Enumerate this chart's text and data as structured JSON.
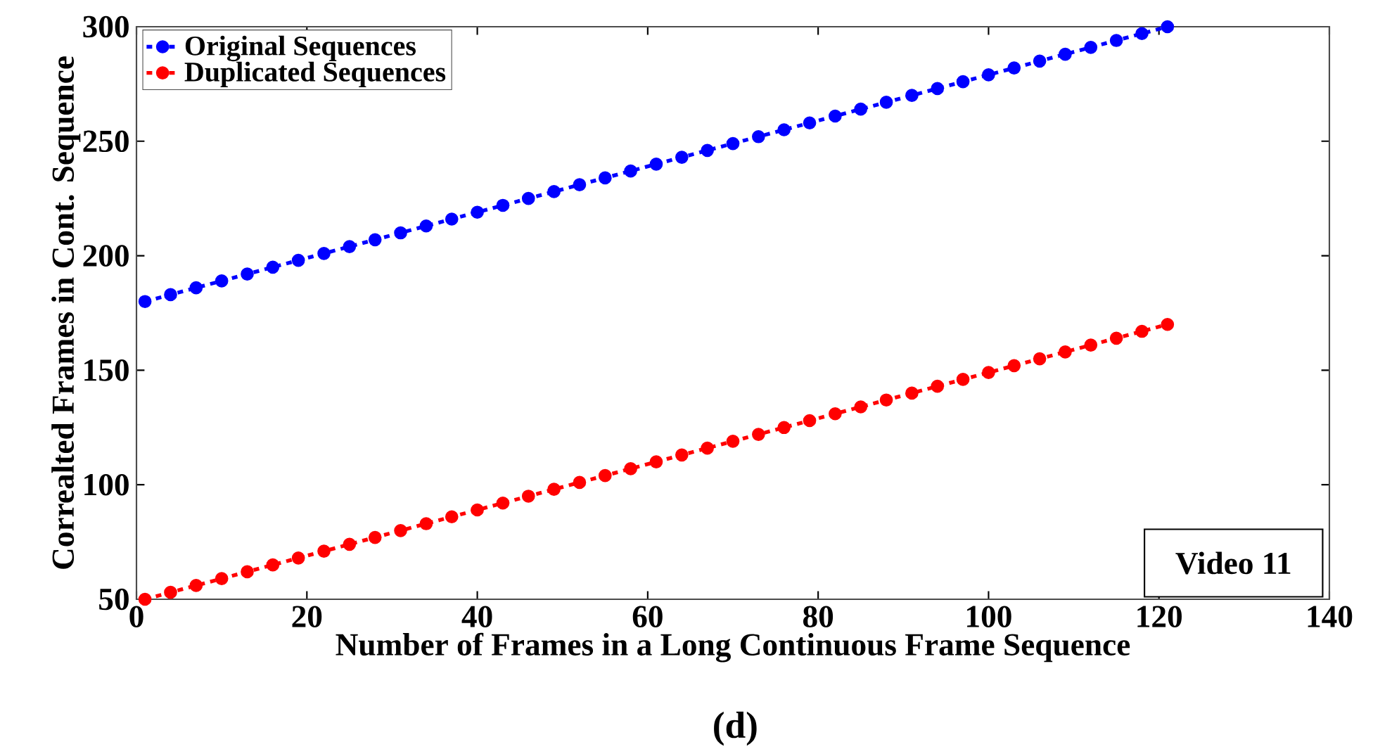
{
  "chart_data": {
    "type": "line",
    "xlabel": "Number of Frames in a Long Continuous Frame Sequence",
    "ylabel": "Correalted Frames in Cont. Sequence",
    "x": [
      1,
      4,
      7,
      10,
      13,
      16,
      19,
      22,
      25,
      28,
      31,
      34,
      37,
      40,
      43,
      46,
      49,
      52,
      55,
      58,
      61,
      64,
      67,
      70,
      73,
      76,
      79,
      82,
      85,
      88,
      91,
      94,
      97,
      100,
      103,
      106,
      109,
      112,
      115,
      118,
      121
    ],
    "series": [
      {
        "name": "Original Sequences",
        "color": "#0000ff",
        "values": [
          180,
          183,
          186,
          189,
          192,
          195,
          198,
          201,
          204,
          207,
          210,
          213,
          216,
          219,
          222,
          225,
          228,
          231,
          234,
          237,
          240,
          243,
          246,
          249,
          252,
          255,
          258,
          261,
          264,
          267,
          270,
          273,
          276,
          279,
          282,
          285,
          288,
          291,
          294,
          297,
          300
        ]
      },
      {
        "name": "Duplicated Sequences",
        "color": "#ff0000",
        "values": [
          50,
          53,
          56,
          59,
          62,
          65,
          68,
          71,
          74,
          77,
          80,
          83,
          86,
          89,
          92,
          95,
          98,
          101,
          104,
          107,
          110,
          113,
          116,
          119,
          122,
          125,
          128,
          131,
          134,
          137,
          140,
          143,
          146,
          149,
          152,
          155,
          158,
          161,
          164,
          167,
          170
        ]
      }
    ],
    "xlim": [
      0,
      140
    ],
    "ylim": [
      50,
      300
    ],
    "xticks": [
      0,
      20,
      40,
      60,
      80,
      100,
      120,
      140
    ],
    "yticks": [
      50,
      100,
      150,
      200,
      250,
      300
    ],
    "marker": "circle",
    "line_style": "dashed",
    "legend": "top left",
    "grid": false,
    "annotations": [
      "Video 11",
      "(d)"
    ]
  }
}
